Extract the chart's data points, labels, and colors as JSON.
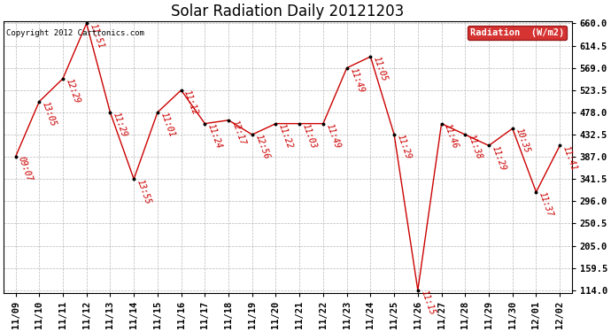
{
  "title": "Solar Radiation Daily 20121203",
  "copyright_text": "Copyright 2012 Cartronics.com",
  "legend_label": "Radiation  (W/m2)",
  "legend_bg": "#cc0000",
  "legend_text_color": "#ffffff",
  "background_color": "#ffffff",
  "grid_color": "#999999",
  "line_color": "#cc0000",
  "marker_color": "#000000",
  "dates": [
    "11/09",
    "11/10",
    "11/11",
    "11/12",
    "11/13",
    "11/14",
    "11/15",
    "11/16",
    "11/17",
    "11/18",
    "11/19",
    "11/20",
    "11/21",
    "11/22",
    "11/23",
    "11/24",
    "11/25",
    "11/26",
    "11/27",
    "11/28",
    "11/29",
    "11/30",
    "12/01",
    "12/02"
  ],
  "values": [
    387.0,
    500.0,
    547.0,
    660.0,
    478.0,
    341.5,
    478.0,
    523.5,
    455.0,
    462.0,
    432.5,
    455.0,
    455.0,
    455.0,
    569.0,
    592.0,
    432.5,
    114.0,
    455.0,
    432.5,
    410.0,
    445.0,
    315.0,
    410.0
  ],
  "labels": [
    "09:07",
    "13:05",
    "12:29",
    "11:51",
    "11:29",
    "13:55",
    "11:01",
    "11:12",
    "11:24",
    "12:17",
    "12:56",
    "11:22",
    "11:03",
    "11:49",
    "11:49",
    "11:05",
    "11:29",
    "11:15",
    "11:46",
    "11:38",
    "11:29",
    "10:35",
    "11:37",
    "11:41"
  ],
  "ylim_min": 114.0,
  "ylim_max": 660.0,
  "yticks": [
    114.0,
    159.5,
    205.0,
    250.5,
    296.0,
    341.5,
    387.0,
    432.5,
    478.0,
    523.5,
    569.0,
    614.5,
    660.0
  ],
  "title_fontsize": 12,
  "tick_fontsize": 7.5,
  "annotation_fontsize": 7,
  "copyright_fontsize": 6.5
}
